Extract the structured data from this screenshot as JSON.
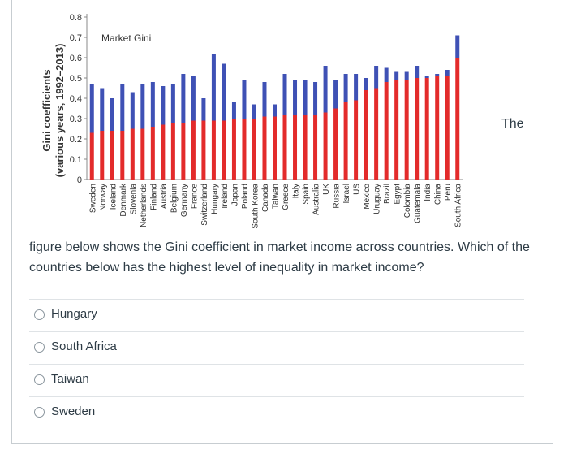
{
  "chart_data": {
    "type": "bar",
    "stacked": true,
    "annotation": "Market Gini",
    "ylabel": "Gini coefficients",
    "ylabel_sub": "(various years, 1992–2013)",
    "ylim": [
      0,
      0.8
    ],
    "yticks": [
      "0",
      "0.1",
      "0.2",
      "0.3",
      "0.4",
      "0.5",
      "0.6",
      "0.7",
      "0.8"
    ],
    "colors": {
      "lower": "#e32b2b",
      "upper": "#3f51b5"
    },
    "categories": [
      "Sweden",
      "Norway",
      "Iceland",
      "Denmark",
      "Slovenia",
      "Netherlands",
      "Finland",
      "Austria",
      "Belgium",
      "Germany",
      "France",
      "Switzerland",
      "Hungary",
      "Ireland",
      "Japan",
      "Poland",
      "South Korea",
      "Canada",
      "Taiwan",
      "Greece",
      "Italy",
      "Spain",
      "Australia",
      "UK",
      "Russia",
      "Israel",
      "US",
      "Mexico",
      "Uruguay",
      "Brazil",
      "Egypt",
      "Colombia",
      "Guatemala",
      "India",
      "China",
      "Peru",
      "South Africa"
    ],
    "lower_values": [
      0.23,
      0.24,
      0.24,
      0.24,
      0.25,
      0.25,
      0.26,
      0.27,
      0.28,
      0.28,
      0.29,
      0.29,
      0.29,
      0.29,
      0.3,
      0.3,
      0.3,
      0.31,
      0.31,
      0.32,
      0.32,
      0.32,
      0.32,
      0.33,
      0.35,
      0.38,
      0.39,
      0.44,
      0.45,
      0.48,
      0.49,
      0.49,
      0.5,
      0.5,
      0.51,
      0.51,
      0.6
    ],
    "total_values": [
      0.47,
      0.45,
      0.4,
      0.47,
      0.43,
      0.47,
      0.48,
      0.46,
      0.47,
      0.52,
      0.51,
      0.4,
      0.62,
      0.57,
      0.38,
      0.49,
      0.37,
      0.48,
      0.37,
      0.52,
      0.49,
      0.49,
      0.48,
      0.56,
      0.49,
      0.52,
      0.52,
      0.5,
      0.56,
      0.55,
      0.53,
      0.53,
      0.56,
      0.51,
      0.52,
      0.54,
      0.71
    ]
  },
  "question": {
    "lead_word": "The",
    "text": "figure below shows the Gini coefficient in market income across countries. Which of the countries below has the highest level of inequality in market income?"
  },
  "options": [
    {
      "label": "Hungary"
    },
    {
      "label": "South Africa"
    },
    {
      "label": "Taiwan"
    },
    {
      "label": "Sweden"
    }
  ]
}
